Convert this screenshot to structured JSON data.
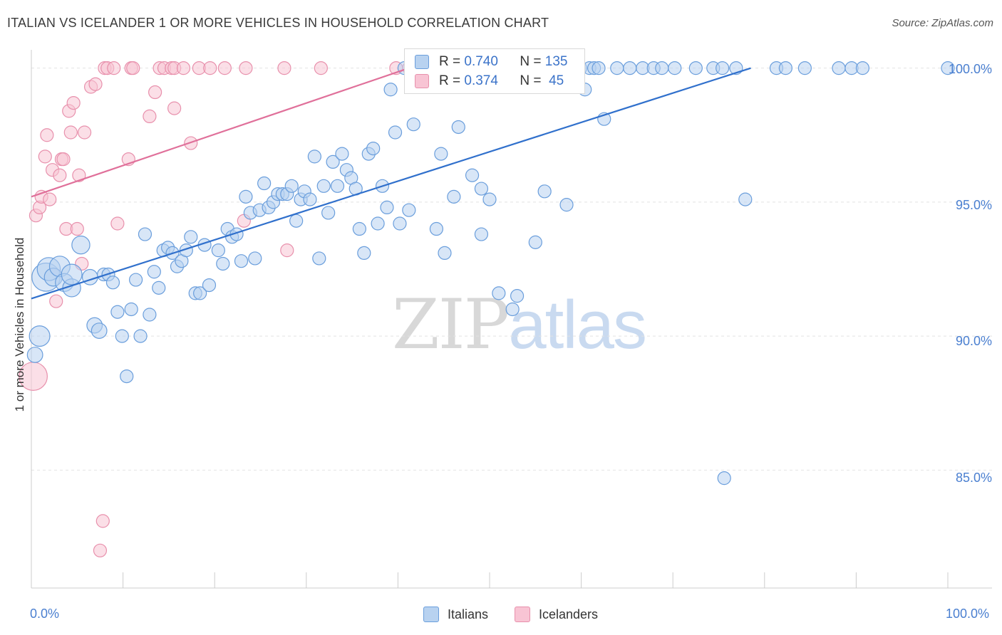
{
  "title": "ITALIAN VS ICELANDER 1 OR MORE VEHICLES IN HOUSEHOLD CORRELATION CHART",
  "source": "Source: ZipAtlas.com",
  "watermark": {
    "zip": "ZIP",
    "atlas": "atlas"
  },
  "legend": {
    "r_label": "R =",
    "n_label": "N =",
    "rows": [
      {
        "name": "Italians",
        "r": "0.740",
        "n": "135"
      },
      {
        "name": "Icelanders",
        "r": "0.374",
        "n": "45"
      }
    ]
  },
  "colors": {
    "italians_fill": "#b8d2f0",
    "italians_stroke": "#6a9edc",
    "italians_line": "#3070cc",
    "icelanders_fill": "#f8c4d4",
    "icelanders_stroke": "#e890ac",
    "icelanders_line": "#e0709a",
    "grid": "#e2e2e2",
    "axis_text": "#4a7fd0"
  },
  "chart_data": {
    "type": "scatter",
    "title": "ITALIAN VS ICELANDER 1 OR MORE VEHICLES IN HOUSEHOLD CORRELATION CHART",
    "xlabel": "",
    "ylabel": "1 or more Vehicles in Household",
    "xlim": [
      0,
      100
    ],
    "ylim": [
      80.6,
      101.0
    ],
    "y_ticks": [
      85.0,
      90.0,
      95.0,
      100.0
    ],
    "y_tick_labels": [
      "85.0%",
      "90.0%",
      "95.0%",
      "100.0%"
    ],
    "x_tick_labels": [
      "0.0%",
      "100.0%"
    ],
    "series": [
      {
        "name": "Italians",
        "r": 0.74,
        "n": 135,
        "trend": {
          "x0": 0,
          "y0": 91.4,
          "x1": 78.5,
          "y1": 100.0
        },
        "points": [
          [
            0.4,
            89.3,
            1.2
          ],
          [
            0.9,
            90.0,
            1.6
          ],
          [
            1.6,
            92.2,
            2.2
          ],
          [
            1.9,
            92.5,
            1.8
          ],
          [
            2.4,
            92.2,
            1.4
          ],
          [
            3.1,
            92.6,
            1.6
          ],
          [
            3.6,
            92.0,
            1.4
          ],
          [
            4.4,
            91.8,
            1.4
          ],
          [
            4.4,
            92.3,
            1.6
          ],
          [
            5.4,
            93.4,
            1.4
          ],
          [
            6.4,
            92.2,
            1.2
          ],
          [
            6.9,
            90.4,
            1.2
          ],
          [
            7.4,
            90.2,
            1.2
          ],
          [
            7.9,
            92.3,
            1.0
          ],
          [
            8.4,
            92.3,
            1.0
          ],
          [
            8.9,
            92.0,
            1.0
          ],
          [
            9.4,
            90.9,
            1.0
          ],
          [
            9.9,
            90.0,
            1.0
          ],
          [
            10.4,
            88.5,
            1.0
          ],
          [
            10.9,
            91.0,
            1.0
          ],
          [
            11.4,
            92.1,
            1.0
          ],
          [
            11.9,
            90.0,
            1.0
          ],
          [
            12.4,
            93.8,
            1.0
          ],
          [
            12.9,
            90.8,
            1.0
          ],
          [
            13.4,
            92.4,
            1.0
          ],
          [
            13.9,
            91.8,
            1.0
          ],
          [
            14.4,
            93.2,
            1.0
          ],
          [
            14.9,
            93.3,
            1.0
          ],
          [
            15.4,
            93.1,
            1.0
          ],
          [
            15.9,
            92.6,
            1.0
          ],
          [
            16.4,
            92.8,
            1.0
          ],
          [
            16.9,
            93.2,
            1.0
          ],
          [
            17.4,
            93.7,
            1.0
          ],
          [
            17.9,
            91.6,
            1.0
          ],
          [
            18.4,
            91.6,
            1.0
          ],
          [
            18.9,
            93.4,
            1.0
          ],
          [
            19.4,
            91.9,
            1.0
          ],
          [
            20.4,
            93.2,
            1.0
          ],
          [
            20.9,
            92.7,
            1.0
          ],
          [
            21.4,
            94.0,
            1.0
          ],
          [
            21.9,
            93.7,
            1.0
          ],
          [
            22.4,
            93.8,
            1.0
          ],
          [
            22.9,
            92.8,
            1.0
          ],
          [
            23.4,
            95.2,
            1.0
          ],
          [
            23.9,
            94.6,
            1.0
          ],
          [
            24.4,
            92.9,
            1.0
          ],
          [
            24.9,
            94.7,
            1.0
          ],
          [
            25.4,
            95.7,
            1.0
          ],
          [
            25.9,
            94.8,
            1.0
          ],
          [
            26.4,
            95.0,
            1.0
          ],
          [
            26.9,
            95.3,
            1.0
          ],
          [
            27.4,
            95.3,
            1.0
          ],
          [
            27.9,
            95.3,
            1.0
          ],
          [
            28.4,
            95.6,
            1.0
          ],
          [
            28.9,
            94.3,
            1.0
          ],
          [
            29.4,
            95.1,
            1.0
          ],
          [
            29.8,
            95.4,
            1.0
          ],
          [
            30.4,
            95.1,
            1.0
          ],
          [
            30.9,
            96.7,
            1.0
          ],
          [
            31.4,
            92.9,
            1.0
          ],
          [
            31.9,
            95.6,
            1.0
          ],
          [
            32.4,
            94.6,
            1.0
          ],
          [
            32.9,
            96.5,
            1.0
          ],
          [
            33.4,
            95.6,
            1.0
          ],
          [
            33.9,
            96.8,
            1.0
          ],
          [
            34.4,
            96.2,
            1.0
          ],
          [
            34.9,
            95.9,
            1.0
          ],
          [
            35.4,
            95.5,
            1.0
          ],
          [
            35.8,
            94.0,
            1.0
          ],
          [
            36.3,
            93.1,
            1.0
          ],
          [
            36.8,
            96.8,
            1.0
          ],
          [
            37.3,
            97.0,
            1.0
          ],
          [
            37.8,
            94.2,
            1.0
          ],
          [
            38.3,
            95.6,
            1.0
          ],
          [
            38.8,
            94.8,
            1.0
          ],
          [
            39.2,
            99.2,
            1.0
          ],
          [
            39.7,
            97.6,
            1.0
          ],
          [
            40.2,
            94.2,
            1.0
          ],
          [
            40.7,
            100.0,
            1.0
          ],
          [
            41.2,
            94.7,
            1.0
          ],
          [
            41.7,
            97.9,
            1.0
          ],
          [
            42.2,
            100.0,
            1.0
          ],
          [
            42.7,
            100.0,
            1.0
          ],
          [
            43.2,
            100.0,
            1.0
          ],
          [
            43.7,
            100.0,
            1.0
          ],
          [
            44.2,
            94.0,
            1.0
          ],
          [
            44.7,
            96.8,
            1.0
          ],
          [
            45.1,
            93.1,
            1.0
          ],
          [
            45.6,
            100.0,
            1.0
          ],
          [
            46.1,
            95.2,
            1.0
          ],
          [
            46.6,
            97.8,
            1.0
          ],
          [
            47.1,
            100.0,
            1.0
          ],
          [
            47.6,
            100.0,
            1.0
          ],
          [
            48.1,
            96.0,
            1.0
          ],
          [
            48.6,
            100.0,
            1.0
          ],
          [
            49.1,
            93.8,
            1.0
          ],
          [
            49.1,
            95.5,
            1.0
          ],
          [
            49.5,
            100.0,
            1.0
          ],
          [
            50.0,
            95.1,
            1.0
          ],
          [
            50.5,
            100.0,
            1.0
          ],
          [
            51.0,
            91.6,
            1.0
          ],
          [
            51.5,
            100.0,
            1.0
          ],
          [
            52.0,
            100.0,
            1.0
          ],
          [
            52.5,
            91.0,
            1.0
          ],
          [
            53.0,
            91.5,
            1.0
          ],
          [
            53.5,
            100.0,
            1.0
          ],
          [
            54.0,
            100.0,
            1.0
          ],
          [
            54.5,
            100.0,
            1.0
          ],
          [
            55.0,
            93.5,
            1.0
          ],
          [
            55.5,
            100.0,
            1.0
          ],
          [
            56.0,
            95.4,
            1.0
          ],
          [
            56.5,
            100.0,
            1.0
          ],
          [
            57.0,
            100.0,
            1.0
          ],
          [
            57.5,
            100.0,
            1.0
          ],
          [
            58.0,
            100.0,
            1.0
          ],
          [
            58.4,
            94.9,
            1.0
          ],
          [
            58.9,
            100.0,
            1.0
          ],
          [
            59.4,
            100.0,
            1.0
          ],
          [
            59.9,
            100.0,
            1.0
          ],
          [
            60.4,
            99.2,
            1.0
          ],
          [
            60.9,
            100.0,
            1.0
          ],
          [
            61.4,
            100.0,
            1.0
          ],
          [
            61.9,
            100.0,
            1.0
          ],
          [
            62.5,
            98.1,
            1.0
          ],
          [
            63.9,
            100.0,
            1.0
          ],
          [
            65.3,
            100.0,
            1.0
          ],
          [
            66.7,
            100.0,
            1.0
          ],
          [
            67.9,
            100.0,
            1.0
          ],
          [
            68.8,
            100.0,
            1.0
          ],
          [
            70.2,
            100.0,
            1.0
          ],
          [
            72.5,
            100.0,
            1.0
          ],
          [
            74.4,
            100.0,
            1.0
          ],
          [
            75.4,
            100.0,
            1.0
          ],
          [
            75.6,
            84.7,
            1.0
          ],
          [
            76.9,
            100.0,
            1.0
          ],
          [
            77.9,
            95.1,
            1.0
          ],
          [
            81.3,
            100.0,
            1.0
          ],
          [
            82.3,
            100.0,
            1.0
          ],
          [
            84.4,
            100.0,
            1.0
          ],
          [
            88.1,
            100.0,
            1.0
          ],
          [
            89.5,
            100.0,
            1.0
          ],
          [
            90.7,
            100.0,
            1.0
          ],
          [
            100.0,
            100.0,
            1.0
          ]
        ]
      },
      {
        "name": "Icelanders",
        "r": 0.374,
        "n": 45,
        "trend": {
          "x0": 0,
          "y0": 95.2,
          "x1": 41.2,
          "y1": 100.0
        },
        "points": [
          [
            0.2,
            88.5,
            2.2
          ],
          [
            0.5,
            94.5,
            1.0
          ],
          [
            0.9,
            94.8,
            1.0
          ],
          [
            1.1,
            95.2,
            1.0
          ],
          [
            1.5,
            96.7,
            1.0
          ],
          [
            1.7,
            97.5,
            1.0
          ],
          [
            2.0,
            95.1,
            1.0
          ],
          [
            2.3,
            96.2,
            1.0
          ],
          [
            2.7,
            91.3,
            1.0
          ],
          [
            3.1,
            96.0,
            1.0
          ],
          [
            3.3,
            96.6,
            1.0
          ],
          [
            3.5,
            96.6,
            1.0
          ],
          [
            3.8,
            94.0,
            1.0
          ],
          [
            4.1,
            98.4,
            1.0
          ],
          [
            4.3,
            97.6,
            1.0
          ],
          [
            4.6,
            98.7,
            1.0
          ],
          [
            5.0,
            94.0,
            1.0
          ],
          [
            5.2,
            96.0,
            1.0
          ],
          [
            5.5,
            92.7,
            1.0
          ],
          [
            5.8,
            97.6,
            1.0
          ],
          [
            6.5,
            99.3,
            1.0
          ],
          [
            7.0,
            99.4,
            1.0
          ],
          [
            7.5,
            82.0,
            1.0
          ],
          [
            7.8,
            83.1,
            1.0
          ],
          [
            8.0,
            100.0,
            1.0
          ],
          [
            8.3,
            100.0,
            1.0
          ],
          [
            9.0,
            100.0,
            1.0
          ],
          [
            9.4,
            94.2,
            1.0
          ],
          [
            10.6,
            96.6,
            1.0
          ],
          [
            10.9,
            100.0,
            1.0
          ],
          [
            11.1,
            100.0,
            1.0
          ],
          [
            12.9,
            98.2,
            1.0
          ],
          [
            13.5,
            99.1,
            1.0
          ],
          [
            14.0,
            100.0,
            1.0
          ],
          [
            14.5,
            100.0,
            1.0
          ],
          [
            15.3,
            100.0,
            1.0
          ],
          [
            15.6,
            100.0,
            1.0
          ],
          [
            15.6,
            98.5,
            1.0
          ],
          [
            16.6,
            100.0,
            1.0
          ],
          [
            17.4,
            97.2,
            1.0
          ],
          [
            18.3,
            100.0,
            1.0
          ],
          [
            19.5,
            100.0,
            1.0
          ],
          [
            21.1,
            100.0,
            1.0
          ],
          [
            23.2,
            94.3,
            1.0
          ],
          [
            23.4,
            100.0,
            1.0
          ],
          [
            27.6,
            100.0,
            1.0
          ],
          [
            27.9,
            93.2,
            1.0
          ],
          [
            31.6,
            100.0,
            1.0
          ],
          [
            39.8,
            100.0,
            1.0
          ],
          [
            41.2,
            100.0,
            1.0
          ]
        ]
      }
    ]
  }
}
